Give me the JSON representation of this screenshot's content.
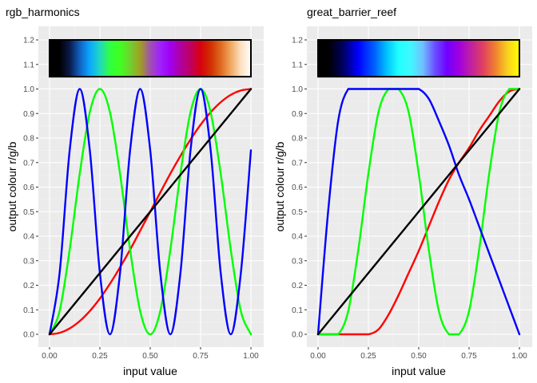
{
  "chart_data": [
    {
      "type": "line",
      "title": "rgb_harmonics",
      "xlabel": "input value",
      "ylabel": "output colour r/g/b",
      "xlim": [
        0,
        1
      ],
      "ylim": [
        0,
        1.2
      ],
      "x_ticks": [
        "0.00",
        "0.25",
        "0.50",
        "0.75",
        "1.00"
      ],
      "y_ticks": [
        "0.0",
        "0.1",
        "0.2",
        "0.3",
        "0.4",
        "0.5",
        "0.6",
        "0.7",
        "0.8",
        "0.9",
        "1.0",
        "1.1",
        "1.2"
      ],
      "x": [
        0,
        0.05,
        0.1,
        0.15,
        0.2,
        0.25,
        0.3,
        0.35,
        0.4,
        0.45,
        0.5,
        0.55,
        0.6,
        0.65,
        0.7,
        0.75,
        0.8,
        0.85,
        0.9,
        0.95,
        1
      ],
      "series": [
        {
          "color": "#ff0000",
          "values": [
            0,
            0.006,
            0.024,
            0.054,
            0.095,
            0.146,
            0.206,
            0.273,
            0.345,
            0.422,
            0.5,
            0.578,
            0.655,
            0.727,
            0.794,
            0.854,
            0.905,
            0.946,
            0.976,
            0.994,
            1
          ]
        },
        {
          "color": "#00ff00",
          "values": [
            0,
            0.095,
            0.345,
            0.655,
            0.905,
            1,
            0.905,
            0.655,
            0.345,
            0.095,
            0,
            0.095,
            0.345,
            0.655,
            0.905,
            1,
            0.905,
            0.655,
            0.345,
            0.095,
            0
          ]
        },
        {
          "color": "#0000ff",
          "values": [
            0,
            0.25,
            0.75,
            1,
            0.75,
            0.25,
            0,
            0.25,
            0.75,
            1,
            0.75,
            0.25,
            0,
            0.25,
            0.75,
            1,
            0.75,
            0.25,
            0,
            0.25,
            0.75
          ]
        },
        {
          "color": "#000000",
          "values": [
            0,
            0.05,
            0.1,
            0.15,
            0.2,
            0.25,
            0.3,
            0.35,
            0.4,
            0.45,
            0.5,
            0.55,
            0.6,
            0.65,
            0.7,
            0.75,
            0.8,
            0.85,
            0.9,
            0.95,
            1
          ]
        }
      ],
      "colorbar": {
        "range": [
          1.05,
          1.2
        ],
        "stops": [
          {
            "at": 0,
            "color": "#000000"
          },
          {
            "at": 0.05,
            "color": "#000000"
          },
          {
            "at": 0.1,
            "color": "#0a1a4a"
          },
          {
            "at": 0.15,
            "color": "#1060c0"
          },
          {
            "at": 0.2,
            "color": "#0aa8ff"
          },
          {
            "at": 0.25,
            "color": "#20d8c0"
          },
          {
            "at": 0.3,
            "color": "#30ff40"
          },
          {
            "at": 0.35,
            "color": "#40ff20"
          },
          {
            "at": 0.4,
            "color": "#70d030"
          },
          {
            "at": 0.45,
            "color": "#a0a020"
          },
          {
            "at": 0.5,
            "color": "#a050b0"
          },
          {
            "at": 0.55,
            "color": "#a020ff"
          },
          {
            "at": 0.6,
            "color": "#a000f0"
          },
          {
            "at": 0.65,
            "color": "#b000a0"
          },
          {
            "at": 0.7,
            "color": "#c00060"
          },
          {
            "at": 0.75,
            "color": "#d80010"
          },
          {
            "at": 0.8,
            "color": "#d03000"
          },
          {
            "at": 0.85,
            "color": "#e06820"
          },
          {
            "at": 0.9,
            "color": "#f0a860"
          },
          {
            "at": 0.95,
            "color": "#fce0c0"
          },
          {
            "at": 1,
            "color": "#ffffff"
          }
        ]
      }
    },
    {
      "type": "line",
      "title": "great_barrier_reef",
      "xlabel": "input value",
      "ylabel": "output colour r/g/b",
      "xlim": [
        0,
        1
      ],
      "ylim": [
        0,
        1.2
      ],
      "x_ticks": [
        "0.00",
        "0.25",
        "0.50",
        "0.75",
        "1.00"
      ],
      "y_ticks": [
        "0.0",
        "0.1",
        "0.2",
        "0.3",
        "0.4",
        "0.5",
        "0.6",
        "0.7",
        "0.8",
        "0.9",
        "1.0",
        "1.1",
        "1.2"
      ],
      "x": [
        0,
        0.05,
        0.1,
        0.15,
        0.2,
        0.25,
        0.3,
        0.35,
        0.4,
        0.45,
        0.5,
        0.55,
        0.6,
        0.65,
        0.7,
        0.75,
        0.8,
        0.85,
        0.9,
        0.95,
        1
      ],
      "series": [
        {
          "color": "#ff0000",
          "values": [
            0,
            0,
            0,
            0,
            0,
            0,
            0.02,
            0.08,
            0.16,
            0.25,
            0.34,
            0.44,
            0.54,
            0.63,
            0.7,
            0.76,
            0.83,
            0.89,
            0.95,
            0.99,
            1
          ]
        },
        {
          "color": "#00ff00",
          "values": [
            0,
            0,
            0,
            0.095,
            0.345,
            0.655,
            0.905,
            1,
            1,
            0.905,
            0.655,
            0.345,
            0.095,
            0,
            0,
            0.095,
            0.345,
            0.655,
            0.905,
            1,
            1
          ]
        },
        {
          "color": "#0000ff",
          "values": [
            0,
            0.5,
            0.87,
            1,
            1,
            1,
            1,
            1,
            1,
            1,
            1,
            0.96,
            0.87,
            0.77,
            0.65,
            0.55,
            0.44,
            0.33,
            0.22,
            0.11,
            0
          ]
        },
        {
          "color": "#000000",
          "values": [
            0,
            0.05,
            0.1,
            0.15,
            0.2,
            0.25,
            0.3,
            0.35,
            0.4,
            0.45,
            0.5,
            0.55,
            0.6,
            0.65,
            0.7,
            0.75,
            0.8,
            0.85,
            0.9,
            0.95,
            1
          ]
        }
      ],
      "colorbar": {
        "range": [
          1.05,
          1.2
        ],
        "stops": [
          {
            "at": 0,
            "color": "#000000"
          },
          {
            "at": 0.05,
            "color": "#000000"
          },
          {
            "at": 0.12,
            "color": "#00005a"
          },
          {
            "at": 0.2,
            "color": "#0000ff"
          },
          {
            "at": 0.28,
            "color": "#0060ff"
          },
          {
            "at": 0.34,
            "color": "#00c0ff"
          },
          {
            "at": 0.4,
            "color": "#20ffff"
          },
          {
            "at": 0.46,
            "color": "#40f8ff"
          },
          {
            "at": 0.52,
            "color": "#70c0ff"
          },
          {
            "at": 0.58,
            "color": "#6a50ff"
          },
          {
            "at": 0.64,
            "color": "#7000ff"
          },
          {
            "at": 0.7,
            "color": "#a000e0"
          },
          {
            "at": 0.76,
            "color": "#c020a0"
          },
          {
            "at": 0.82,
            "color": "#e04060"
          },
          {
            "at": 0.88,
            "color": "#f08030"
          },
          {
            "at": 0.94,
            "color": "#f8d020"
          },
          {
            "at": 1,
            "color": "#ffff00"
          }
        ]
      }
    }
  ]
}
